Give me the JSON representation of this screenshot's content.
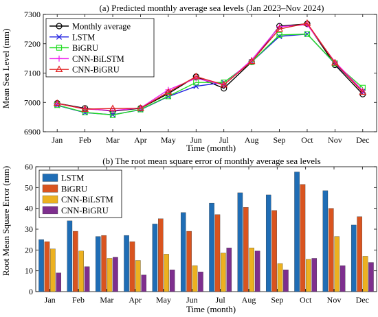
{
  "chart_data": [
    {
      "type": "line",
      "title": "(a) Predicted monthly average sea levels (Jan 2023–Nov 2024)",
      "xlabel": "Time (month)",
      "ylabel": "Mean Sea Level (mm)",
      "categories": [
        "Jan",
        "Feb",
        "Mar",
        "Apr",
        "May",
        "Jun",
        "Jul",
        "Aug",
        "Sep",
        "Oct",
        "Nov",
        "Dec"
      ],
      "ylim": [
        6900,
        7300
      ],
      "yticks": [
        6900,
        7000,
        7100,
        7200,
        7300
      ],
      "legend_position": "top-left",
      "grid": false,
      "series": [
        {
          "name": "Monthly average",
          "color": "#000000",
          "marker": "circle",
          "values": [
            6997,
            6980,
            6970,
            6980,
            7030,
            7088,
            7048,
            7138,
            7260,
            7268,
            7128,
            7028
          ]
        },
        {
          "name": "LSTM",
          "color": "#1f1fe0",
          "marker": "x",
          "values": [
            6990,
            6965,
            6958,
            6975,
            7020,
            7055,
            7068,
            7138,
            7225,
            7233,
            7132,
            7038
          ]
        },
        {
          "name": "BiGRU",
          "color": "#22dd22",
          "marker": "square",
          "values": [
            6991,
            6966,
            6957,
            6976,
            7021,
            7068,
            7068,
            7138,
            7230,
            7233,
            7133,
            7050
          ]
        },
        {
          "name": "CNN-BiLSTM",
          "color": "#ee22ee",
          "marker": "plus",
          "values": [
            6996,
            6978,
            6972,
            6981,
            7043,
            7082,
            7060,
            7145,
            7258,
            7265,
            7138,
            7040
          ]
        },
        {
          "name": "CNN-BiGRU",
          "color": "#e02020",
          "marker": "triangle",
          "values": [
            6997,
            6977,
            6979,
            6980,
            7035,
            7088,
            7060,
            7140,
            7250,
            7270,
            7135,
            7035
          ]
        }
      ]
    },
    {
      "type": "bar",
      "title": "(b) The root mean square error of monthly average sea levels",
      "xlabel": "Time (month)",
      "ylabel": "Root Mean Square Error (mm)",
      "categories": [
        "Jan",
        "Feb",
        "Mar",
        "Apr",
        "May",
        "Jun",
        "Jul",
        "Aug",
        "Sep",
        "Oct",
        "Nov",
        "Dec"
      ],
      "ylim": [
        0,
        60
      ],
      "yticks": [
        0,
        10,
        20,
        30,
        40,
        50,
        60
      ],
      "legend_position": "top-left",
      "grid": false,
      "series": [
        {
          "name": "LSTM",
          "color": "#1f6db5",
          "values": [
            25,
            34,
            26.5,
            27,
            32.5,
            38,
            42.5,
            47.5,
            46.5,
            57.5,
            48.5,
            32
          ]
        },
        {
          "name": "BiGRU",
          "color": "#d9541f",
          "values": [
            24,
            29,
            27,
            24,
            35,
            29,
            37,
            40.5,
            39,
            51.5,
            40,
            36
          ]
        },
        {
          "name": "CNN-BiLSTM",
          "color": "#ecb120",
          "values": [
            20.5,
            19.5,
            16,
            15,
            18,
            12.5,
            18.5,
            21,
            13.5,
            15.5,
            26.5,
            17
          ]
        },
        {
          "name": "CNN-BiGRU",
          "color": "#7e2f8e",
          "values": [
            9,
            12,
            16.5,
            8,
            10.5,
            9.5,
            21,
            19.5,
            10.5,
            16,
            12.5,
            14
          ]
        }
      ]
    }
  ]
}
